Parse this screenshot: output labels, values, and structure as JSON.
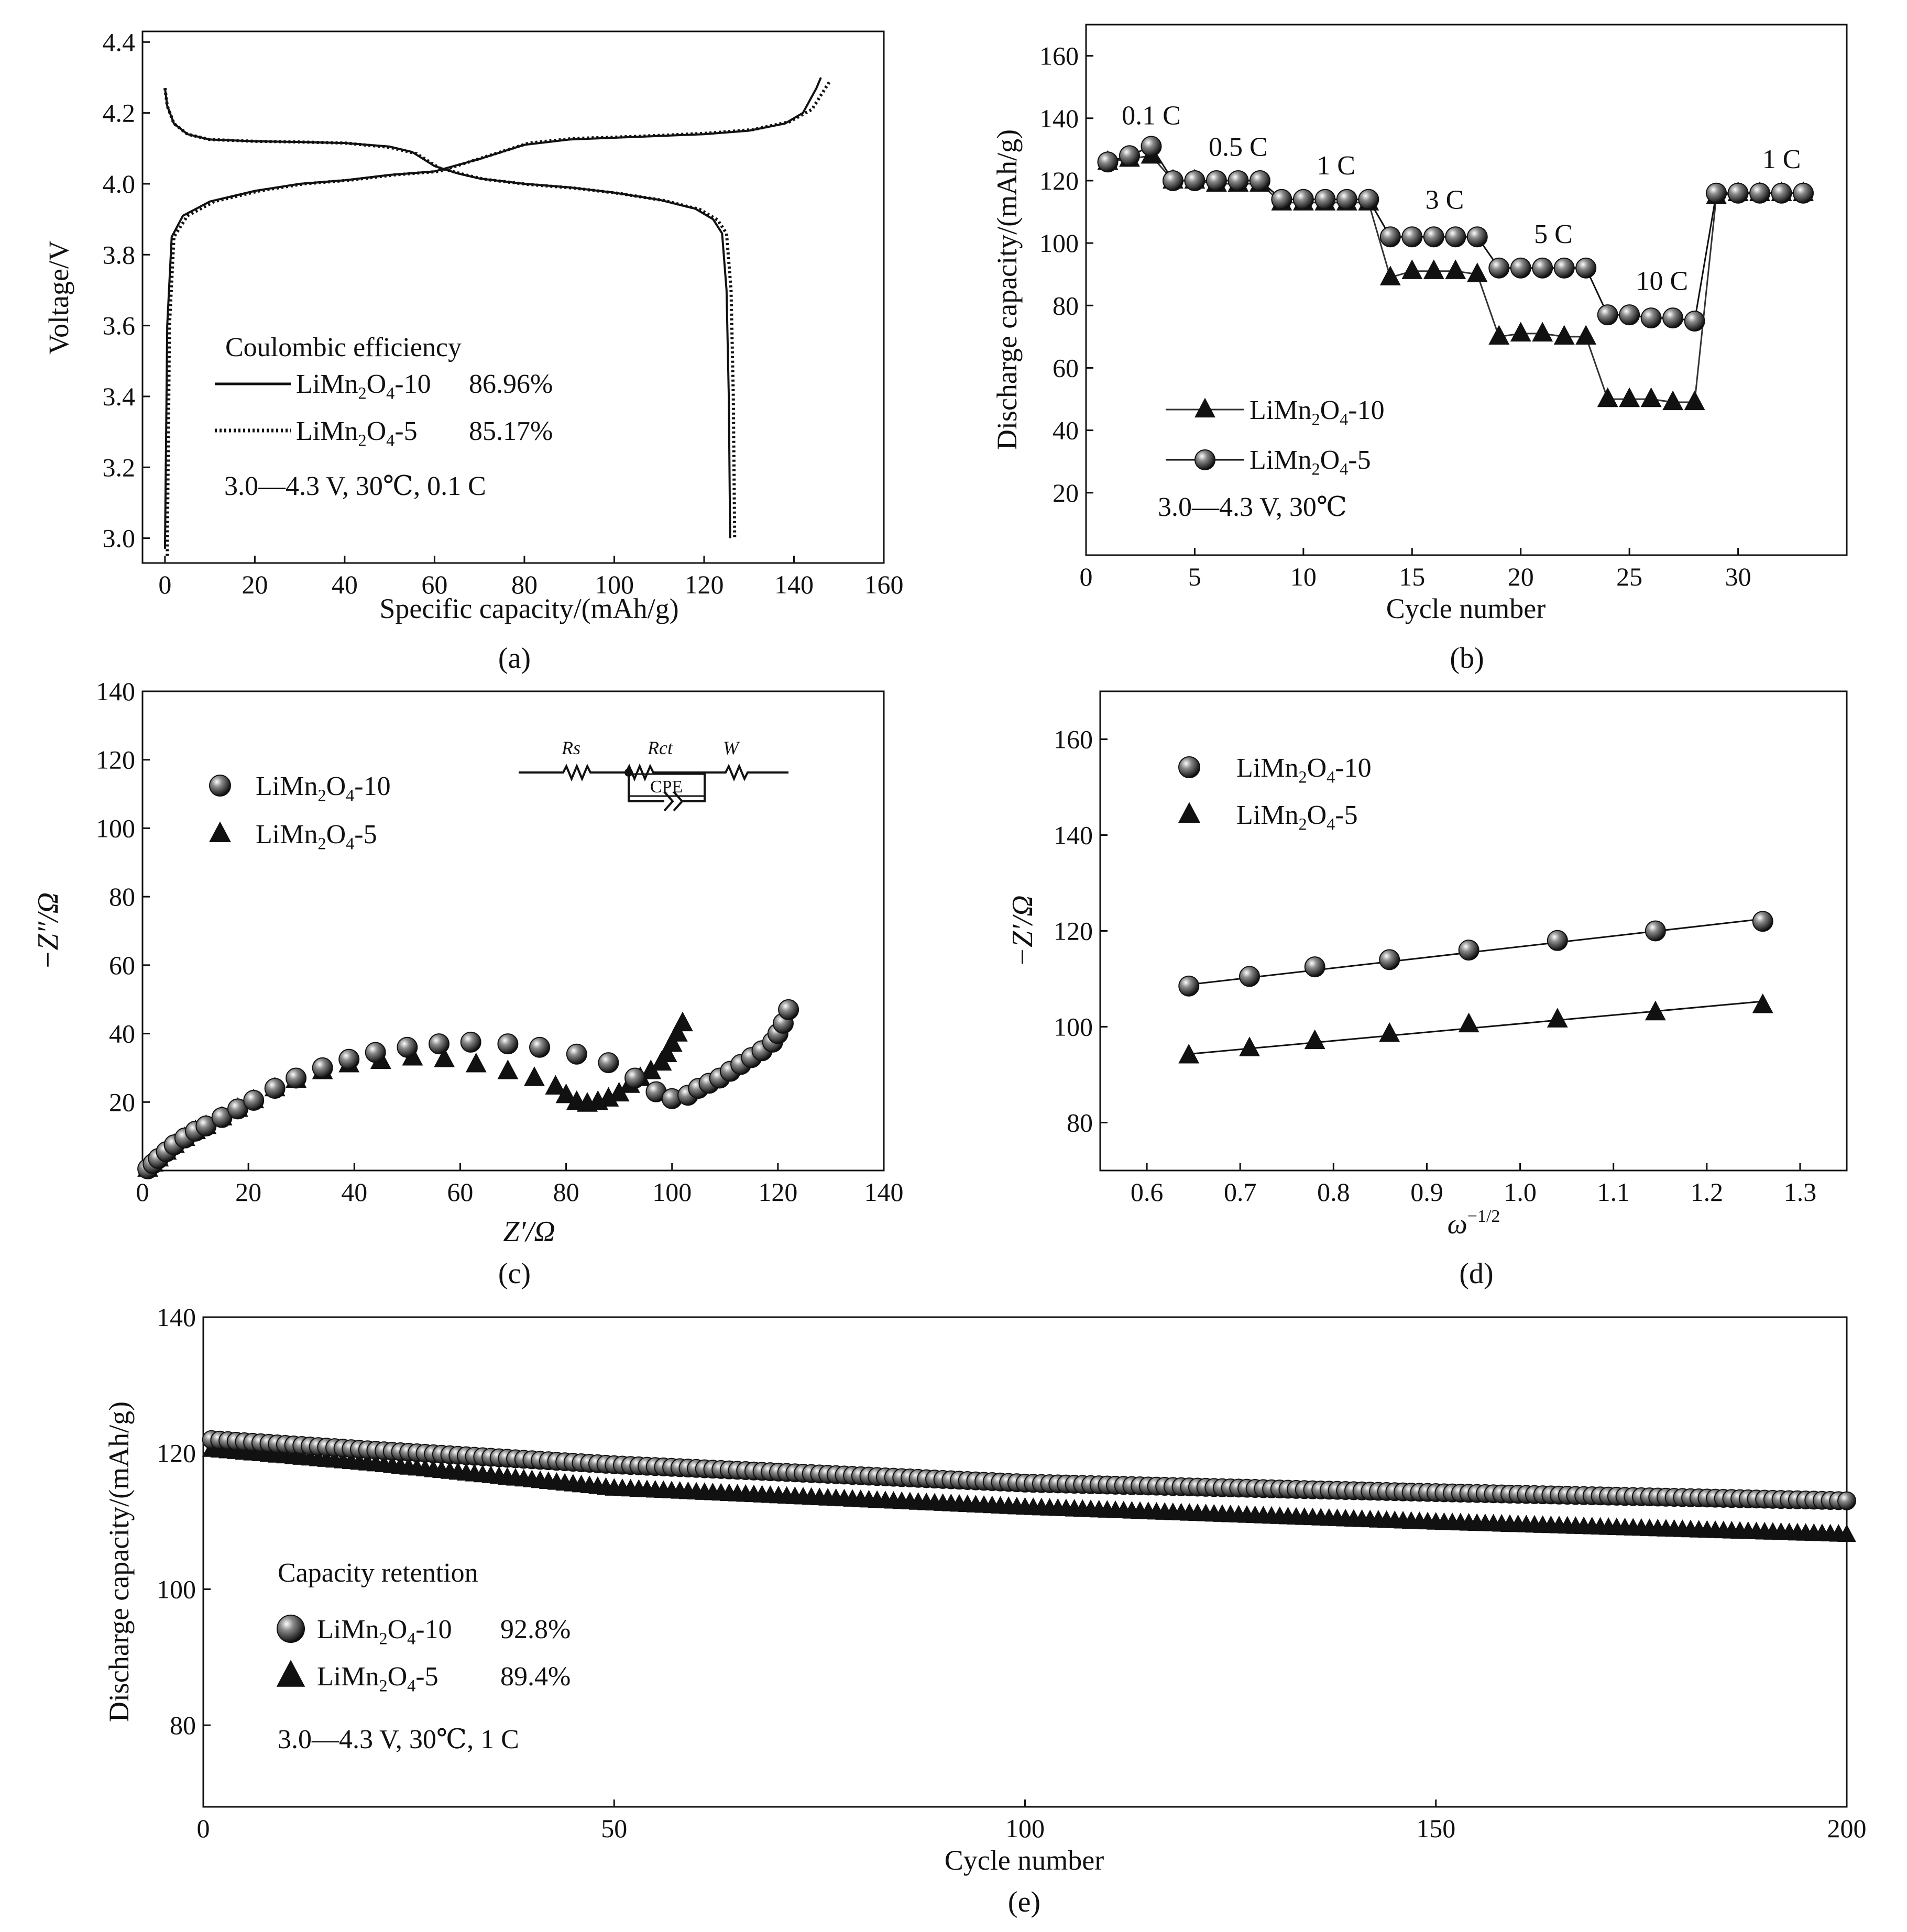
{
  "figure": {
    "panel_labels": [
      "(a)",
      "(b)",
      "(c)",
      "(d)",
      "(e)"
    ]
  },
  "chart_data": [
    {
      "id": "a",
      "type": "line",
      "title": "",
      "xlabel": "Specific capacity/(mAh/g)",
      "ylabel": "Voltage/V",
      "xlim": [
        -5,
        160
      ],
      "ylim": [
        2.93,
        4.43
      ],
      "xticks": [
        "0",
        "20",
        "40",
        "60",
        "80",
        "100",
        "120",
        "140",
        "160"
      ],
      "yticks": [
        "3.0",
        "3.2",
        "3.4",
        "3.6",
        "3.8",
        "4.0",
        "4.2",
        "4.4"
      ],
      "legend_title": "Coulombic efficiency",
      "condition": "3.0—4.3 V, 30℃, 0.1 C",
      "series": [
        {
          "name": "LiMn2O4-10",
          "efficiency": "86.96%",
          "charge_points": [
            [
              0,
              2.97
            ],
            [
              0.5,
              3.6
            ],
            [
              1.5,
              3.85
            ],
            [
              4,
              3.91
            ],
            [
              10,
              3.95
            ],
            [
              20,
              3.98
            ],
            [
              30,
              4.0
            ],
            [
              40,
              4.01
            ],
            [
              50,
              4.025
            ],
            [
              60,
              4.035
            ],
            [
              70,
              4.07
            ],
            [
              80,
              4.11
            ],
            [
              90,
              4.125
            ],
            [
              100,
              4.13
            ],
            [
              110,
              4.135
            ],
            [
              120,
              4.14
            ],
            [
              130,
              4.15
            ],
            [
              138,
              4.17
            ],
            [
              142,
              4.2
            ],
            [
              145,
              4.27
            ],
            [
              146,
              4.3
            ]
          ],
          "discharge_points": [
            [
              0,
              4.27
            ],
            [
              0.5,
              4.22
            ],
            [
              2,
              4.17
            ],
            [
              5,
              4.14
            ],
            [
              10,
              4.125
            ],
            [
              20,
              4.12
            ],
            [
              30,
              4.118
            ],
            [
              40,
              4.115
            ],
            [
              50,
              4.105
            ],
            [
              55,
              4.09
            ],
            [
              60,
              4.05
            ],
            [
              65,
              4.03
            ],
            [
              70,
              4.015
            ],
            [
              80,
              4.0
            ],
            [
              90,
              3.99
            ],
            [
              100,
              3.975
            ],
            [
              110,
              3.955
            ],
            [
              118,
              3.93
            ],
            [
              122,
              3.9
            ],
            [
              124,
              3.86
            ],
            [
              125,
              3.7
            ],
            [
              125.5,
              3.4
            ],
            [
              125.8,
              3.0
            ]
          ]
        },
        {
          "name": "LiMn2O4-5",
          "efficiency": "85.17%",
          "charge_points": [
            [
              0.5,
              2.95
            ],
            [
              1,
              3.6
            ],
            [
              2,
              3.85
            ],
            [
              5,
              3.91
            ],
            [
              11,
              3.95
            ],
            [
              21,
              3.98
            ],
            [
              31,
              4.0
            ],
            [
              41,
              4.01
            ],
            [
              51,
              4.025
            ],
            [
              61,
              4.035
            ],
            [
              71,
              4.075
            ],
            [
              81,
              4.115
            ],
            [
              91,
              4.128
            ],
            [
              101,
              4.132
            ],
            [
              111,
              4.137
            ],
            [
              121,
              4.143
            ],
            [
              131,
              4.153
            ],
            [
              139,
              4.175
            ],
            [
              144,
              4.21
            ],
            [
              147,
              4.27
            ],
            [
              148,
              4.29
            ]
          ],
          "discharge_points": [
            [
              0,
              4.27
            ],
            [
              0.5,
              4.22
            ],
            [
              2,
              4.17
            ],
            [
              5,
              4.14
            ],
            [
              10,
              4.125
            ],
            [
              20,
              4.12
            ],
            [
              30,
              4.118
            ],
            [
              40,
              4.115
            ],
            [
              50,
              4.103
            ],
            [
              56,
              4.085
            ],
            [
              61,
              4.045
            ],
            [
              66,
              4.028
            ],
            [
              71,
              4.013
            ],
            [
              81,
              3.998
            ],
            [
              91,
              3.988
            ],
            [
              101,
              3.973
            ],
            [
              111,
              3.953
            ],
            [
              119,
              3.928
            ],
            [
              123,
              3.898
            ],
            [
              125,
              3.86
            ],
            [
              126,
              3.7
            ],
            [
              126.5,
              3.4
            ],
            [
              126.8,
              3.0
            ]
          ]
        }
      ]
    },
    {
      "id": "b",
      "type": "line",
      "title": "",
      "xlabel": "Cycle number",
      "ylabel": "Discharge capacity/(mAh/g)",
      "xlim": [
        0,
        35
      ],
      "ylim": [
        0,
        170
      ],
      "xticks": [
        "0",
        "5",
        "10",
        "15",
        "20",
        "25",
        "30"
      ],
      "yticks": [
        "20",
        "40",
        "60",
        "80",
        "100",
        "120",
        "140",
        "160"
      ],
      "condition": "3.0—4.3 V, 30℃",
      "rate_labels": [
        {
          "text": "0.1 C",
          "x": 3,
          "y": 138
        },
        {
          "text": "0.5 C",
          "x": 7,
          "y": 128
        },
        {
          "text": "1 C",
          "x": 11.5,
          "y": 122
        },
        {
          "text": "3 C",
          "x": 16.5,
          "y": 111
        },
        {
          "text": "5 C",
          "x": 21.5,
          "y": 100
        },
        {
          "text": "10 C",
          "x": 26.5,
          "y": 85
        },
        {
          "text": "1 C",
          "x": 32,
          "y": 124
        }
      ],
      "series": [
        {
          "name": "LiMn2O4-10",
          "marker": "triangle",
          "x": [
            1,
            2,
            3,
            4,
            5,
            6,
            7,
            8,
            9,
            10,
            11,
            12,
            13,
            14,
            15,
            16,
            17,
            18,
            19,
            20,
            21,
            22,
            23,
            24,
            25,
            26,
            27,
            28,
            29,
            30,
            31,
            32,
            33
          ],
          "y": [
            126,
            127,
            128,
            120,
            120,
            119,
            119,
            119,
            113,
            113,
            113,
            113,
            113,
            89,
            91,
            91,
            91,
            90,
            70,
            71,
            71,
            70,
            70,
            50,
            50,
            50,
            49,
            49,
            115,
            116,
            116,
            116,
            116
          ]
        },
        {
          "name": "LiMn2O4-5",
          "marker": "circle",
          "x": [
            1,
            2,
            3,
            4,
            5,
            6,
            7,
            8,
            9,
            10,
            11,
            12,
            13,
            14,
            15,
            16,
            17,
            18,
            19,
            20,
            21,
            22,
            23,
            24,
            25,
            26,
            27,
            28,
            29,
            30,
            31,
            32,
            33
          ],
          "y": [
            126,
            128,
            131,
            120,
            120,
            120,
            120,
            120,
            114,
            114,
            114,
            114,
            114,
            102,
            102,
            102,
            102,
            102,
            92,
            92,
            92,
            92,
            92,
            77,
            77,
            76,
            76,
            75,
            116,
            116,
            116,
            116,
            116
          ]
        }
      ]
    },
    {
      "id": "c",
      "type": "scatter",
      "title": "",
      "xlabel": "Z′/Ω",
      "ylabel": "−Z″/Ω",
      "xlim": [
        0,
        140
      ],
      "ylim": [
        0,
        140
      ],
      "xticks": [
        "0",
        "20",
        "40",
        "60",
        "80",
        "100",
        "120",
        "140"
      ],
      "yticks": [
        "20",
        "40",
        "60",
        "80",
        "100",
        "120",
        "140"
      ],
      "circuit_labels": [
        "Rs",
        "Rct",
        "W",
        "CPE"
      ],
      "series": [
        {
          "name": "LiMn2O4-10",
          "marker": "circle",
          "points": [
            [
              1,
              0.5
            ],
            [
              2,
              2
            ],
            [
              3,
              3.5
            ],
            [
              4.5,
              5.5
            ],
            [
              6,
              7.5
            ],
            [
              8,
              9.5
            ],
            [
              10,
              11.5
            ],
            [
              12,
              13
            ],
            [
              15,
              15.5
            ],
            [
              18,
              18
            ],
            [
              21,
              20.5
            ],
            [
              25,
              24
            ],
            [
              29,
              27
            ],
            [
              34,
              30
            ],
            [
              39,
              32.5
            ],
            [
              44,
              34.5
            ],
            [
              50,
              36
            ],
            [
              56,
              37
            ],
            [
              62,
              37.5
            ],
            [
              69,
              37
            ],
            [
              75,
              36
            ],
            [
              82,
              34
            ],
            [
              88,
              31.5
            ],
            [
              93,
              27
            ],
            [
              97,
              23
            ],
            [
              100,
              21
            ],
            [
              103,
              22
            ],
            [
              105,
              24
            ],
            [
              107,
              25.5
            ],
            [
              109,
              27
            ],
            [
              111,
              29
            ],
            [
              113,
              31
            ],
            [
              115,
              33
            ],
            [
              117,
              35
            ],
            [
              119,
              37.5
            ],
            [
              120,
              40
            ],
            [
              121,
              43
            ],
            [
              122,
              47
            ]
          ]
        },
        {
          "name": "LiMn2O4-5",
          "marker": "triangle",
          "points": [
            [
              1,
              0.5
            ],
            [
              2,
              2
            ],
            [
              3,
              3.5
            ],
            [
              4.5,
              5.5
            ],
            [
              6,
              7.5
            ],
            [
              8,
              9.5
            ],
            [
              10,
              11.5
            ],
            [
              12,
              13
            ],
            [
              15,
              15.5
            ],
            [
              18,
              18
            ],
            [
              21,
              20.5
            ],
            [
              25,
              24
            ],
            [
              29,
              26.5
            ],
            [
              34,
              29
            ],
            [
              39,
              31
            ],
            [
              45,
              32
            ],
            [
              51,
              33
            ],
            [
              57,
              32.5
            ],
            [
              63,
              31
            ],
            [
              69,
              29
            ],
            [
              74,
              27
            ],
            [
              78,
              24.5
            ],
            [
              80,
              22
            ],
            [
              82,
              20
            ],
            [
              84,
              19.5
            ],
            [
              86,
              20
            ],
            [
              88,
              21
            ],
            [
              90,
              22.5
            ],
            [
              92,
              25
            ],
            [
              94,
              27
            ],
            [
              96,
              29
            ],
            [
              98,
              31.5
            ],
            [
              99,
              34
            ],
            [
              100,
              37
            ],
            [
              101,
              40
            ],
            [
              102,
              43
            ]
          ]
        }
      ]
    },
    {
      "id": "d",
      "type": "scatter",
      "title": "",
      "xlabel": "ω−1/2",
      "ylabel": "−Z′/Ω",
      "xlim": [
        0.55,
        1.35
      ],
      "ylim": [
        70,
        170
      ],
      "xticks": [
        "0.6",
        "0.7",
        "0.8",
        "0.9",
        "1.0",
        "1.1",
        "1.2",
        "1.3"
      ],
      "yticks": [
        "80",
        "100",
        "120",
        "140",
        "160"
      ],
      "series": [
        {
          "name": "LiMn2O4-10",
          "marker": "circle",
          "x": [
            0.645,
            0.71,
            0.78,
            0.86,
            0.945,
            1.04,
            1.145,
            1.26
          ],
          "y": [
            108.5,
            110.5,
            112.5,
            114,
            116,
            118,
            120,
            122
          ],
          "fit": [
            [
              0.645,
              108.8
            ],
            [
              1.26,
              122.5
            ]
          ]
        },
        {
          "name": "LiMn2O4-5",
          "marker": "triangle",
          "x": [
            0.645,
            0.71,
            0.78,
            0.86,
            0.945,
            1.04,
            1.145,
            1.26
          ],
          "y": [
            94,
            95.5,
            97,
            98.5,
            100.5,
            101.5,
            103,
            104.5
          ],
          "fit": [
            [
              0.645,
              94.3
            ],
            [
              1.26,
              105.3
            ]
          ]
        }
      ]
    },
    {
      "id": "e",
      "type": "scatter",
      "title": "",
      "xlabel": "Cycle number",
      "ylabel": "Discharge capacity/(mAh/g)",
      "xlim": [
        0,
        200
      ],
      "ylim": [
        68,
        140
      ],
      "xticks": [
        "0",
        "50",
        "100",
        "150",
        "200"
      ],
      "yticks": [
        "80",
        "100",
        "120",
        "140"
      ],
      "legend_title": "Capacity retention",
      "condition": "3.0—4.3 V, 30℃, 1 C",
      "series": [
        {
          "name": "LiMn2O4-10",
          "marker": "circle",
          "retention": "92.8%",
          "start": 122,
          "end": 113,
          "anchors": [
            [
              1,
              122
            ],
            [
              20,
              120.5
            ],
            [
              50,
              118.3
            ],
            [
              100,
              115.6
            ],
            [
              150,
              114.2
            ],
            [
              200,
              113
            ]
          ]
        },
        {
          "name": "LiMn2O4-5",
          "marker": "triangle",
          "retention": "89.4%",
          "start": 120.5,
          "end": 108,
          "anchors": [
            [
              1,
              120.5
            ],
            [
              20,
              118.5
            ],
            [
              50,
              114.8
            ],
            [
              100,
              112
            ],
            [
              150,
              109.8
            ],
            [
              200,
              108
            ]
          ]
        }
      ]
    }
  ]
}
